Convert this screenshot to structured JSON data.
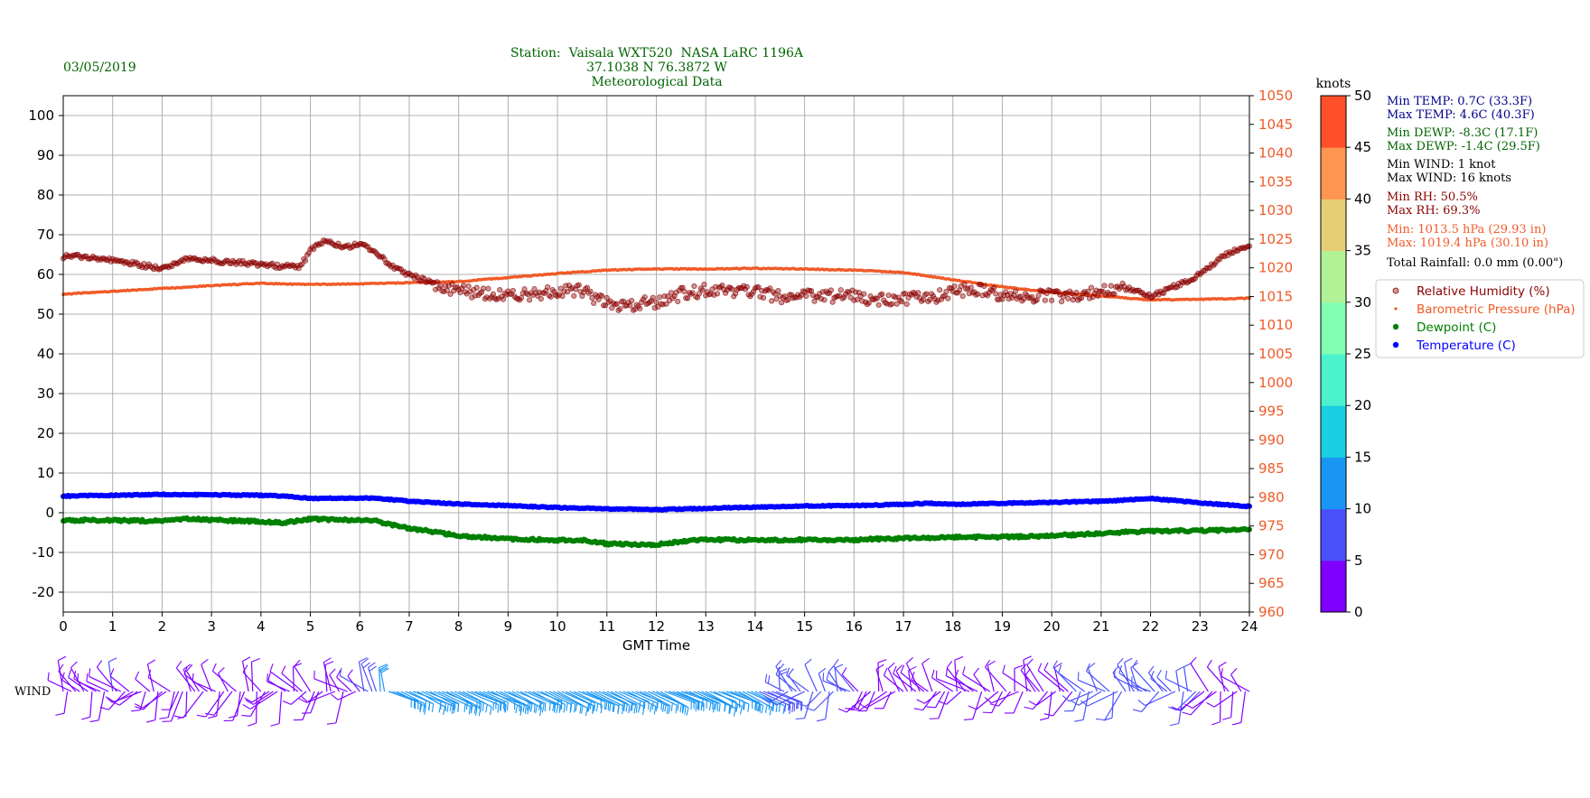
{
  "header": {
    "date": "03/05/2019",
    "station_lines": [
      "Station:  Vaisala WXT520  NASA LaRC 1196A",
      "37.1038 N 76.3872 W",
      "Meteorological Data"
    ]
  },
  "stats": [
    {
      "text": "Min TEMP: 0.7C (33.3F)",
      "color": "#00008b"
    },
    {
      "text": "Max TEMP: 4.6C (40.3F)",
      "color": "#00008b"
    },
    {
      "text": "Min DEWP: -8.3C (17.1F)",
      "color": "#006400"
    },
    {
      "text": "Max DEWP: -1.4C (29.5F)",
      "color": "#006400"
    },
    {
      "text": "Min WIND: 1 knot",
      "color": "#000000"
    },
    {
      "text": "Max WIND: 16 knots",
      "color": "#000000"
    },
    {
      "text": "Min RH: 50.5%",
      "color": "#8b0000"
    },
    {
      "text": "Max RH: 69.3%",
      "color": "#8b0000"
    },
    {
      "text": "Min: 1013.5 hPa (29.93 in)",
      "color": "#f05a28"
    },
    {
      "text": "Max: 1019.4 hPa (30.10 in)",
      "color": "#f05a28"
    },
    {
      "text": "Total Rainfall: 0.0 mm (0.00\")",
      "color": "#000000"
    }
  ],
  "legend": [
    {
      "label": "Relative Humidity (%)",
      "color": "#8b0000",
      "marker": "open-circle"
    },
    {
      "label": "Barometric Pressure (hPa)",
      "color": "#f05a28",
      "marker": "small-dot"
    },
    {
      "label": "Dewpoint (C)",
      "color": "#008000",
      "marker": "dot"
    },
    {
      "label": "Temperature (C)",
      "color": "#0000ff",
      "marker": "dot"
    }
  ],
  "colorbar": {
    "title": "knots",
    "ticks": [
      "0",
      "5",
      "10",
      "15",
      "20",
      "25",
      "30",
      "35",
      "40",
      "45",
      "50"
    ],
    "colors": [
      "#8000ff",
      "#4c50fc",
      "#1996f3",
      "#1acee3",
      "#4cf2ce",
      "#80ffb4",
      "#b2f296",
      "#e6ce74",
      "#ff9650",
      "#ff5029",
      "#ff0000"
    ]
  },
  "wind_label": "WIND",
  "chart_data": {
    "type": "scatter",
    "xlabel": "GMT Time",
    "xlim": [
      0,
      24
    ],
    "xticks": [
      "0",
      "1",
      "2",
      "3",
      "4",
      "5",
      "6",
      "7",
      "8",
      "9",
      "10",
      "11",
      "12",
      "13",
      "14",
      "15",
      "16",
      "17",
      "18",
      "19",
      "20",
      "21",
      "22",
      "23",
      "24"
    ],
    "left_axis": {
      "ylim": [
        -25,
        105
      ],
      "ticks": [
        "-20",
        "-10",
        "0",
        "10",
        "20",
        "30",
        "40",
        "50",
        "60",
        "70",
        "80",
        "90",
        "100"
      ]
    },
    "right_axis": {
      "ylim": [
        960,
        1050
      ],
      "ticks": [
        "960",
        "965",
        "970",
        "975",
        "980",
        "985",
        "990",
        "995",
        "1000",
        "1005",
        "1010",
        "1015",
        "1020",
        "1025",
        "1030",
        "1035",
        "1040",
        "1045",
        "1050"
      ],
      "color": "#f05a28"
    },
    "grid": true,
    "series": [
      {
        "name": "Relative Humidity (%)",
        "axis": "left",
        "color": "#8b0000",
        "x": [
          0,
          0.5,
          1,
          1.5,
          2,
          2.5,
          3,
          3.5,
          4,
          4.5,
          4.8,
          5,
          5.3,
          5.7,
          6,
          6.3,
          6.7,
          7,
          7.5,
          8,
          8.5,
          9,
          9.5,
          10,
          10.5,
          11,
          11.5,
          12,
          12.5,
          13,
          13.5,
          14,
          14.5,
          15,
          15.5,
          16,
          16.5,
          17,
          17.5,
          18,
          18.5,
          19,
          19.5,
          20,
          20.5,
          21,
          21.5,
          22,
          22.5,
          23,
          23.5,
          24
        ],
        "y": [
          64.5,
          64.5,
          63.5,
          62.5,
          61.5,
          64,
          63.5,
          63,
          62.5,
          62,
          62,
          66,
          68.5,
          67,
          67.5,
          66,
          61.5,
          60,
          57.5,
          56,
          55,
          55,
          55,
          55.5,
          56,
          52.5,
          52.5,
          53,
          55,
          56,
          56,
          55.5,
          54.5,
          54.5,
          54.5,
          54.5,
          53.5,
          54,
          54,
          55.5,
          56.5,
          55,
          54.5,
          54.5,
          55,
          55.5,
          56.5,
          54.5,
          57,
          60,
          65,
          67.5
        ]
      },
      {
        "name": "Barometric Pressure (hPa)",
        "axis": "right",
        "color": "#f05a28",
        "x": [
          0,
          1,
          2,
          3,
          4,
          5,
          6,
          7,
          8,
          9,
          10,
          11,
          12,
          13,
          14,
          15,
          16,
          17,
          18,
          19,
          20,
          21,
          22,
          23,
          24
        ],
        "y": [
          1015.4,
          1015.9,
          1016.4,
          1016.9,
          1017.3,
          1017.1,
          1017.2,
          1017.4,
          1017.6,
          1018.3,
          1019,
          1019.6,
          1019.8,
          1019.8,
          1019.9,
          1019.8,
          1019.6,
          1019.2,
          1017.9,
          1016.7,
          1015.7,
          1015.1,
          1014.4,
          1014.5,
          1014.7
        ]
      },
      {
        "name": "Dewpoint (C)",
        "axis": "left",
        "color": "#008000",
        "x": [
          0,
          1,
          2,
          2.5,
          3,
          4,
          4.5,
          5,
          6,
          6.3,
          7,
          7.5,
          8,
          9,
          10,
          10.5,
          11,
          12,
          12.5,
          13,
          14,
          15,
          16,
          17,
          18,
          19,
          20,
          21,
          22,
          23,
          24
        ],
        "y": [
          -1.9,
          -1.9,
          -2.1,
          -1.6,
          -1.8,
          -2.2,
          -2.5,
          -1.6,
          -1.9,
          -2,
          -4,
          -4.8,
          -5.8,
          -6.6,
          -6.9,
          -6.9,
          -7.8,
          -8,
          -7.2,
          -6.8,
          -6.9,
          -6.8,
          -6.8,
          -6.4,
          -6.2,
          -6.1,
          -5.8,
          -5.2,
          -4.6,
          -4.5,
          -4.3
        ]
      },
      {
        "name": "Temperature (C)",
        "axis": "left",
        "color": "#0000ff",
        "x": [
          0,
          1,
          2,
          3,
          4,
          4.5,
          5,
          6,
          6.3,
          7,
          8,
          9,
          10,
          11,
          12,
          13,
          14,
          15,
          16,
          17,
          17.5,
          18,
          19,
          20,
          21,
          21.5,
          22,
          23,
          24
        ],
        "y": [
          4.2,
          4.4,
          4.6,
          4.5,
          4.4,
          4.2,
          3.6,
          3.7,
          3.7,
          2.9,
          2.2,
          1.8,
          1.3,
          1,
          0.8,
          1.1,
          1.4,
          1.7,
          1.8,
          2.1,
          2.4,
          2.1,
          2.4,
          2.6,
          2.9,
          3.2,
          3.6,
          2.5,
          1.6
        ]
      }
    ],
    "wind": {
      "x": [
        0,
        1,
        2,
        3,
        4,
        5,
        6,
        6.5,
        7,
        8,
        9,
        10,
        11,
        12,
        13,
        14,
        15,
        16,
        17,
        18,
        19,
        20,
        21,
        22,
        23,
        24
      ],
      "speed_knots": [
        4,
        5,
        4,
        4,
        3,
        3,
        4,
        12,
        12,
        11,
        11,
        11,
        12,
        11,
        11,
        10,
        7,
        5,
        4,
        4,
        4,
        4,
        6,
        7,
        5,
        4
      ]
    }
  }
}
